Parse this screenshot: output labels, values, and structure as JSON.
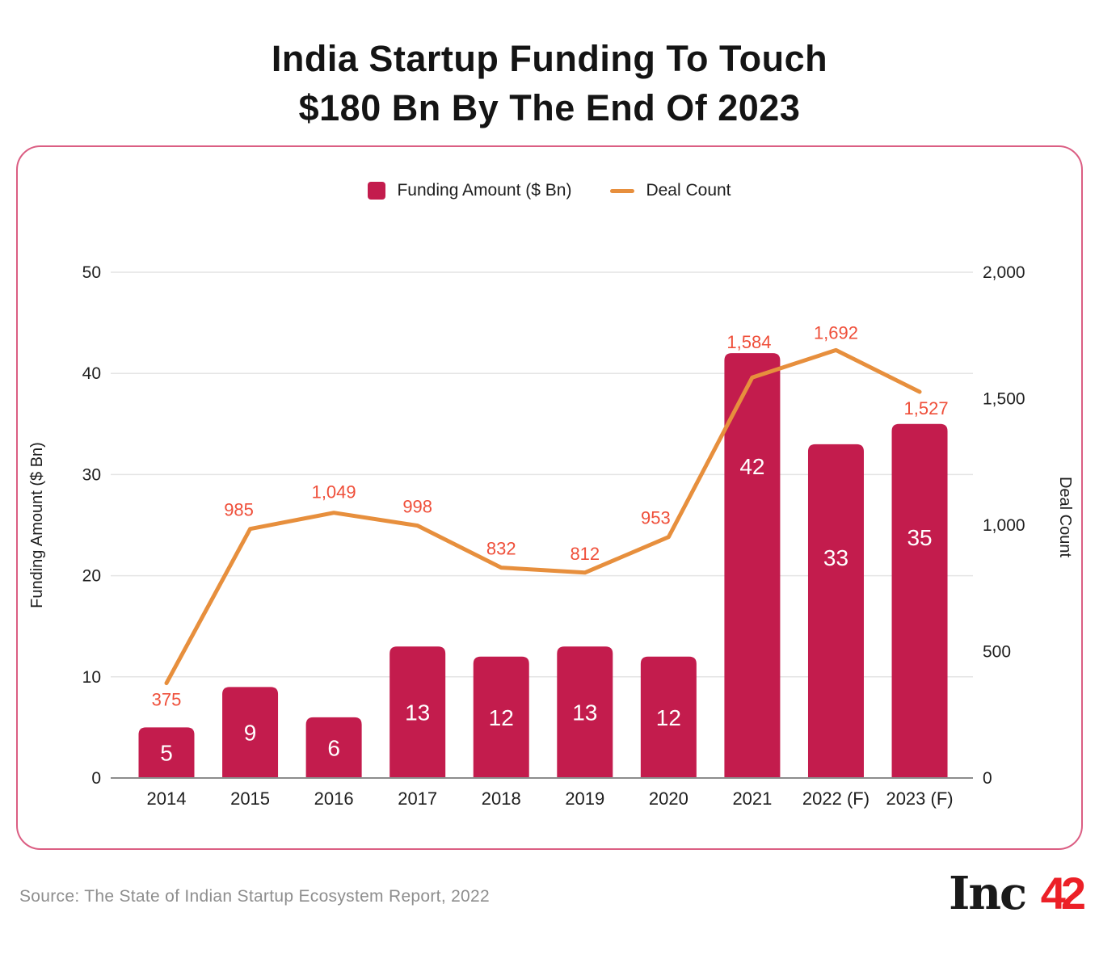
{
  "title": {
    "line1": "India Startup Funding To Touch",
    "line2": "$180 Bn By The End Of 2023"
  },
  "source": "Source: The State of Indian Startup Ecosystem Report, 2022",
  "logo": {
    "black": "Inc",
    "red": "42"
  },
  "colors": {
    "bar": "#C31C4D",
    "line": "#E78F3D",
    "point_label": "#EF4F3A",
    "card_border": "#DB5E83",
    "grid": "#E4E4E4",
    "axis_line": "#8C8C8C",
    "text_dark": "#1E1E1E",
    "source_text": "#8E8E8E",
    "logo_red": "#EC2027",
    "bar_label": "#FFFFFF"
  },
  "chart_data": {
    "type": "bar",
    "title": "India Startup Funding To Touch $180 Bn By The End Of 2023",
    "categories": [
      "2014",
      "2015",
      "2016",
      "2017",
      "2018",
      "2019",
      "2020",
      "2021",
      "2022 (F)",
      "2023 (F)"
    ],
    "series": [
      {
        "name": "Funding Amount ($ Bn)",
        "type": "bar",
        "color": "#C31C4D",
        "values": [
          5,
          9,
          6,
          13,
          12,
          13,
          12,
          42,
          33,
          35
        ],
        "labels": [
          "5",
          "9",
          "6",
          "13",
          "12",
          "13",
          "12",
          "42",
          "33",
          "35"
        ]
      },
      {
        "name": "Deal Count",
        "type": "line",
        "color": "#E78F3D",
        "values": [
          375,
          985,
          1049,
          998,
          832,
          812,
          953,
          1584,
          1692,
          1527
        ],
        "labels": [
          "375",
          "985",
          "1,049",
          "998",
          "832",
          "812",
          "953",
          "1,584",
          "1,692",
          "1,527"
        ]
      }
    ],
    "left_axis": {
      "label": "Funding Amount ($ Bn)",
      "tick_values": [
        0,
        10,
        20,
        30,
        40,
        50
      ],
      "tick_labels": [
        "0",
        "10",
        "20",
        "30",
        "40",
        "50"
      ],
      "range": [
        0,
        50
      ]
    },
    "right_axis": {
      "label": "Deal Count",
      "tick_values": [
        0,
        500,
        1000,
        1500,
        2000
      ],
      "tick_labels": [
        "0",
        "500",
        "1,000",
        "1,500",
        "2,000"
      ],
      "range": [
        0,
        2000
      ]
    },
    "grid": "horizontal",
    "legend_position": "top-center"
  }
}
